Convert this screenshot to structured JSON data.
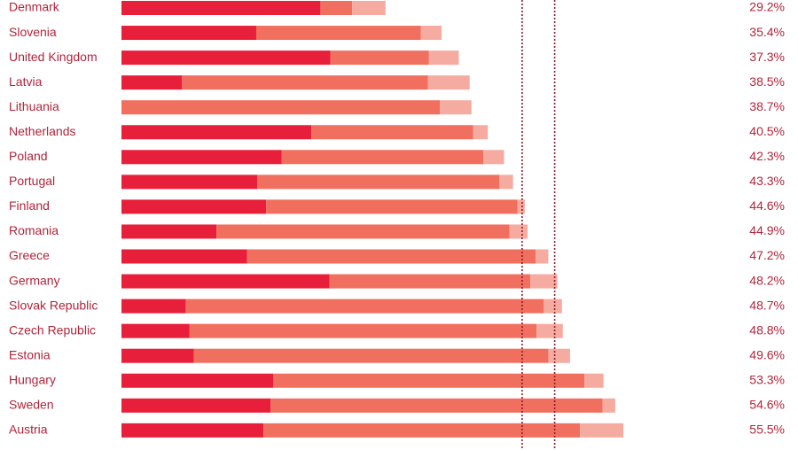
{
  "chart_data": {
    "type": "stacked-bar-horizontal",
    "categories": [
      "Denmark",
      "Slovenia",
      "United Kingdom",
      "Latvia",
      "Lithuania",
      "Netherlands",
      "Poland",
      "Portugal",
      "Finland",
      "Romania",
      "Greece",
      "Germany",
      "Slovak Republic",
      "Czech Republic",
      "Estonia",
      "Hungary",
      "Sweden",
      "Austria"
    ],
    "series": [
      {
        "color": "#e81f3a",
        "values": [
          22.0,
          14.9,
          23.1,
          6.7,
          0,
          21.0,
          17.7,
          15.0,
          16.0,
          10.5,
          13.9,
          23.0,
          7.1,
          7.5,
          8.0,
          16.8,
          16.5,
          15.7
        ]
      },
      {
        "color": "#f06f5f",
        "values": [
          3.5,
          18.2,
          10.9,
          27.2,
          35.2,
          17.9,
          22.3,
          26.8,
          27.8,
          32.4,
          31.9,
          22.2,
          39.6,
          38.4,
          39.2,
          34.4,
          36.7,
          35.0
        ]
      },
      {
        "color": "#f6aba1",
        "values": [
          3.7,
          2.3,
          3.3,
          4.6,
          3.5,
          1.6,
          2.3,
          1.5,
          0.8,
          2.0,
          1.4,
          3.0,
          2.0,
          2.9,
          2.4,
          2.1,
          1.4,
          4.8
        ]
      }
    ],
    "totals": {
      "values": [
        29.2,
        35.4,
        37.3,
        38.5,
        38.7,
        40.5,
        42.3,
        43.3,
        44.6,
        44.9,
        47.2,
        48.2,
        48.7,
        48.8,
        49.6,
        53.3,
        54.6,
        55.5
      ],
      "value_labels": [
        "29.2%",
        "35.4%",
        "37.3%",
        "38.5%",
        "38.7%",
        "40.5%",
        "42.3%",
        "43.3%",
        "44.6%",
        "44.9%",
        "47.2%",
        "48.2%",
        "48.7%",
        "48.8%",
        "49.6%",
        "53.3%",
        "54.6%",
        "55.5%"
      ]
    },
    "reference_lines": {
      "values": [
        44.3,
        47.9
      ],
      "color": "#8b1a2a"
    },
    "xlim": [
      0,
      70
    ]
  }
}
